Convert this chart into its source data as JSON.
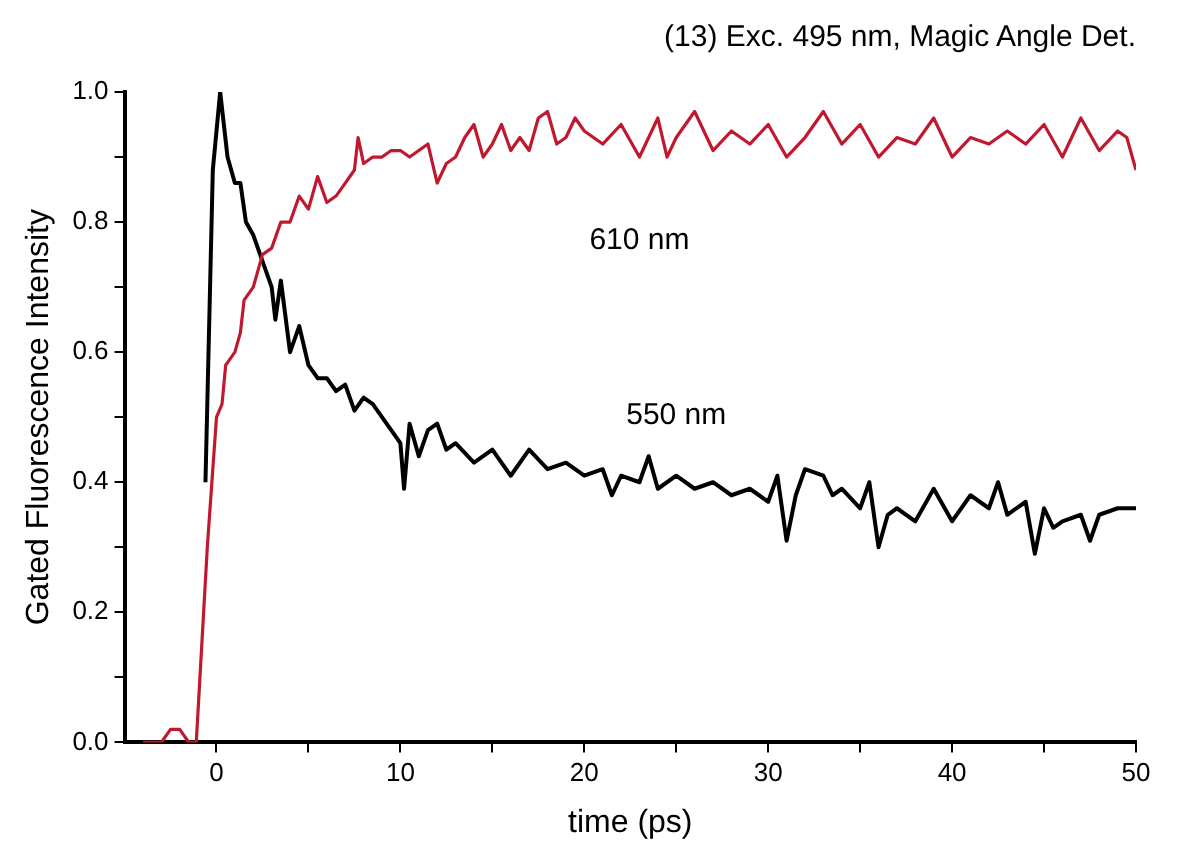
{
  "chart_data": {
    "type": "line",
    "title": "(13) Exc. 495 nm, Magic Angle Det.",
    "xlabel": "time (ps)",
    "ylabel": "Gated Fluorescence Intensity",
    "xlim": [
      -5,
      50
    ],
    "xticks": [
      0,
      {
        "value": 5,
        "label": null
      },
      10,
      {
        "value": 15,
        "label": null
      },
      20,
      {
        "value": 25,
        "label": null
      },
      30,
      {
        "value": 35,
        "label": null
      },
      40,
      {
        "value": 45,
        "label": null
      },
      50
    ],
    "ylim": [
      0,
      1
    ],
    "yticks": [
      {
        "value": 0,
        "label": "0.0"
      },
      {
        "value": 0.1,
        "label": null
      },
      0.2,
      {
        "value": 0.3,
        "label": null
      },
      0.4,
      {
        "value": 0.5,
        "label": null
      },
      0.6,
      {
        "value": 0.7,
        "label": null
      },
      0.8,
      {
        "value": 0.9,
        "label": null
      },
      {
        "value": 1,
        "label": "1.0"
      }
    ],
    "grid": false,
    "legend": false,
    "marker": "none",
    "line_style": "solid",
    "series": [
      {
        "name": "610 nm",
        "color": "#c0182f",
        "x": [
          -4,
          -3.5,
          -3,
          -2.5,
          -2.2,
          -2,
          -1.5,
          -1.1,
          -0.9,
          -0.5,
          0,
          0.3,
          0.5,
          1,
          1.3,
          1.5,
          2,
          2.5,
          3,
          3.5,
          4,
          4.5,
          5,
          5.5,
          6,
          6.5,
          7,
          7.5,
          7.7,
          8,
          8.5,
          9,
          9.5,
          10,
          10.5,
          11,
          11.5,
          12,
          12.5,
          13,
          13.5,
          14,
          14.5,
          15,
          15.5,
          16,
          16.5,
          17,
          17.5,
          18,
          18.5,
          19,
          19.5,
          20,
          21,
          22,
          23,
          24,
          24.5,
          25,
          26,
          27,
          28,
          29,
          30,
          31,
          32,
          33,
          34,
          35,
          36,
          37,
          38,
          39,
          40,
          41,
          42,
          43,
          44,
          45,
          46,
          47,
          48,
          49,
          49.5,
          50
        ],
        "values": [
          0,
          0,
          0,
          0.02,
          0.02,
          0.02,
          0,
          0,
          0.1,
          0.3,
          0.5,
          0.52,
          0.58,
          0.6,
          0.63,
          0.68,
          0.7,
          0.75,
          0.76,
          0.8,
          0.8,
          0.84,
          0.82,
          0.87,
          0.83,
          0.84,
          0.86,
          0.88,
          0.93,
          0.89,
          0.9,
          0.9,
          0.91,
          0.91,
          0.9,
          0.91,
          0.92,
          0.86,
          0.89,
          0.9,
          0.93,
          0.95,
          0.9,
          0.92,
          0.95,
          0.91,
          0.93,
          0.91,
          0.96,
          0.97,
          0.92,
          0.93,
          0.96,
          0.94,
          0.92,
          0.95,
          0.9,
          0.96,
          0.9,
          0.93,
          0.97,
          0.91,
          0.94,
          0.92,
          0.95,
          0.9,
          0.93,
          0.97,
          0.92,
          0.95,
          0.9,
          0.93,
          0.92,
          0.96,
          0.9,
          0.93,
          0.92,
          0.94,
          0.92,
          0.95,
          0.9,
          0.96,
          0.91,
          0.94,
          0.93,
          0.88
        ]
      },
      {
        "name": "550 nm",
        "color": "#000000",
        "x": [
          -0.6,
          -0.2,
          0.2,
          0.6,
          1,
          1.3,
          1.6,
          2,
          2.5,
          3,
          3.2,
          3.5,
          4,
          4.5,
          5,
          5.5,
          6,
          6.5,
          7,
          7.5,
          8,
          8.5,
          9,
          9.5,
          10,
          10.2,
          10.5,
          11,
          11.5,
          12,
          12.5,
          13,
          14,
          15,
          16,
          17,
          18,
          19,
          20,
          21,
          21.5,
          22,
          23,
          23.5,
          24,
          25,
          26,
          27,
          28,
          29,
          30,
          30.5,
          31,
          31.5,
          32,
          33,
          33.5,
          34,
          35,
          35.5,
          36,
          36.5,
          37,
          38,
          39,
          40,
          41,
          42,
          42.5,
          43,
          44,
          44.5,
          45,
          45.5,
          46,
          47,
          47.5,
          48,
          49,
          50
        ],
        "values": [
          0.4,
          0.88,
          1,
          0.9,
          0.86,
          0.86,
          0.8,
          0.78,
          0.74,
          0.7,
          0.65,
          0.71,
          0.6,
          0.64,
          0.58,
          0.56,
          0.56,
          0.54,
          0.55,
          0.51,
          0.53,
          0.52,
          0.5,
          0.48,
          0.46,
          0.39,
          0.49,
          0.44,
          0.48,
          0.49,
          0.45,
          0.46,
          0.43,
          0.45,
          0.41,
          0.45,
          0.42,
          0.43,
          0.41,
          0.42,
          0.38,
          0.41,
          0.4,
          0.44,
          0.39,
          0.41,
          0.39,
          0.4,
          0.38,
          0.39,
          0.37,
          0.41,
          0.31,
          0.38,
          0.42,
          0.41,
          0.38,
          0.39,
          0.36,
          0.4,
          0.3,
          0.35,
          0.36,
          0.34,
          0.39,
          0.34,
          0.38,
          0.36,
          0.4,
          0.35,
          0.37,
          0.29,
          0.36,
          0.33,
          0.34,
          0.35,
          0.31,
          0.35,
          0.36,
          0.36
        ]
      }
    ]
  }
}
